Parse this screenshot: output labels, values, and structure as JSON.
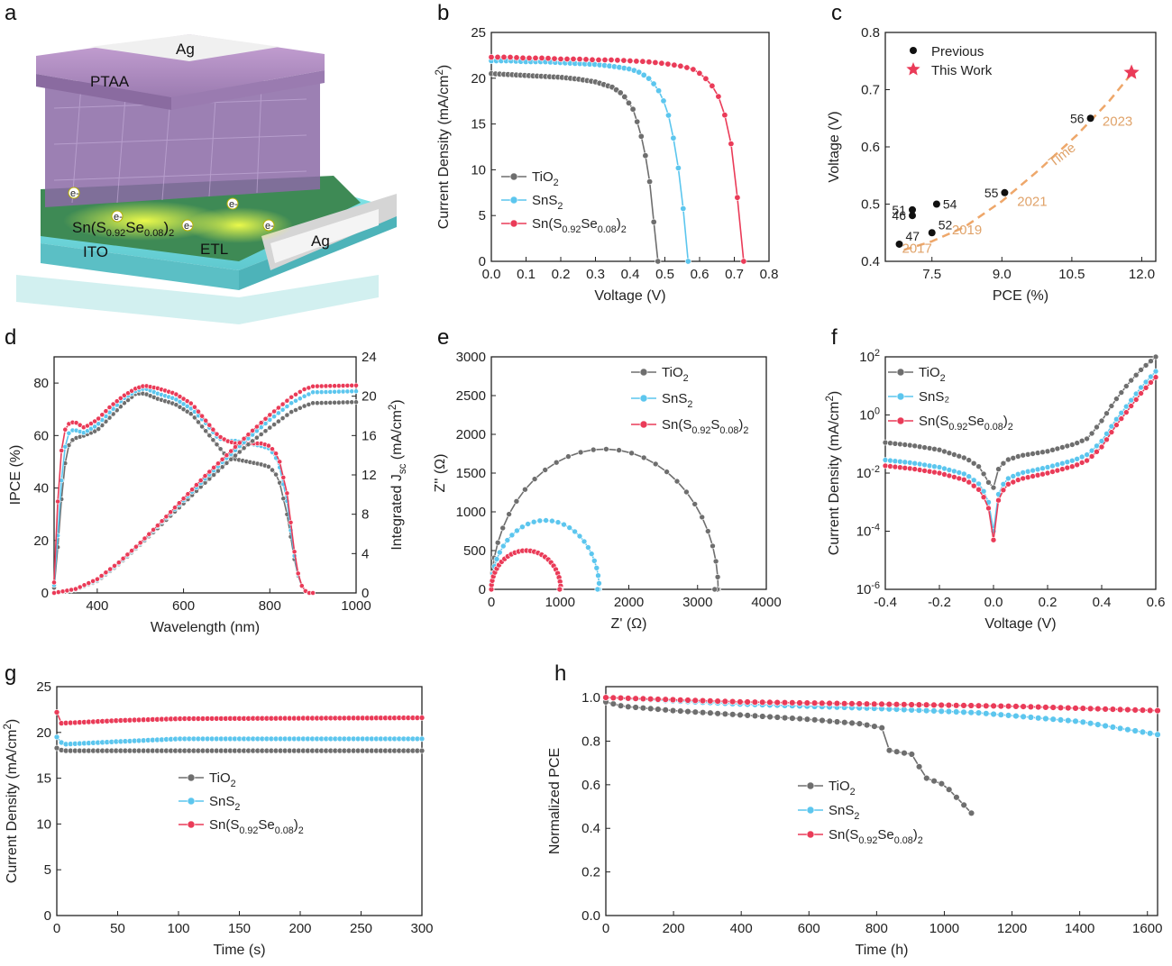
{
  "panel_letters": [
    "a",
    "b",
    "c",
    "d",
    "e",
    "f",
    "g",
    "h"
  ],
  "schematic": {
    "labels": [
      "Ag",
      "PTAA",
      "Sn(S0.92Se0.08)2",
      "ETL",
      "ITO",
      "Ag"
    ],
    "electron": "e-"
  },
  "colors": {
    "tio2": "#6e6e6e",
    "sns2": "#5cc6ee",
    "snsse": "#ea3b58",
    "trend": "#eea76a"
  },
  "chart_data": [
    {
      "panel": "b",
      "type": "line",
      "xlabel": "Voltage (V)",
      "ylabel": "Current Density (mA/cm²)",
      "xlim": [
        0,
        0.8
      ],
      "ylim": [
        0,
        25
      ],
      "xticks": [
        0,
        0.1,
        0.2,
        0.3,
        0.4,
        0.5,
        0.6,
        0.7,
        0.8
      ],
      "yticks": [
        0,
        5,
        10,
        15,
        20,
        25
      ],
      "series": [
        {
          "name": "TiO2",
          "label": [
            "TiO",
            "2",
            ""
          ],
          "color": "tio2",
          "x": [
            0,
            0.05,
            0.1,
            0.15,
            0.2,
            0.25,
            0.3,
            0.35,
            0.38,
            0.41,
            0.43,
            0.45,
            0.46,
            0.47,
            0.475,
            0.48
          ],
          "y": [
            20.5,
            20.4,
            20.3,
            20.2,
            20.1,
            19.9,
            19.6,
            19.0,
            18.2,
            16.5,
            14.0,
            10.5,
            7.5,
            3.5,
            1.5,
            0
          ]
        },
        {
          "name": "SnS2",
          "label": [
            "SnS",
            "2",
            ""
          ],
          "color": "sns2",
          "x": [
            0,
            0.05,
            0.1,
            0.15,
            0.2,
            0.25,
            0.3,
            0.35,
            0.4,
            0.43,
            0.46,
            0.49,
            0.51,
            0.53,
            0.545,
            0.555,
            0.562,
            0.567
          ],
          "y": [
            21.9,
            21.9,
            21.8,
            21.8,
            21.7,
            21.6,
            21.5,
            21.3,
            21.0,
            20.6,
            19.8,
            18.2,
            16.0,
            12.5,
            8.5,
            5.0,
            2.0,
            0
          ]
        },
        {
          "name": "Sn(S0.92Se0.08)2",
          "label": [
            "Sn(S",
            "0.92",
            "Se",
            "0.08",
            ")",
            "2"
          ],
          "color": "snsse",
          "x": [
            0,
            0.05,
            0.1,
            0.15,
            0.2,
            0.25,
            0.3,
            0.35,
            0.4,
            0.45,
            0.5,
            0.55,
            0.58,
            0.61,
            0.64,
            0.66,
            0.68,
            0.69,
            0.7,
            0.71,
            0.72,
            0.727
          ],
          "y": [
            22.3,
            22.3,
            22.2,
            22.2,
            22.1,
            22.1,
            22.0,
            22.0,
            21.9,
            21.8,
            21.6,
            21.3,
            21.0,
            20.3,
            19.0,
            17.6,
            15.0,
            13.0,
            10.5,
            6.5,
            3.0,
            0
          ]
        }
      ]
    },
    {
      "panel": "c",
      "type": "scatter",
      "xlabel": "PCE (%)",
      "ylabel": "Voltage (V)",
      "xlim": [
        6.5,
        12.3
      ],
      "ylim": [
        0.4,
        0.8
      ],
      "xticks": [
        7.5,
        9.0,
        10.5,
        12.0
      ],
      "yticks": [
        0.4,
        0.5,
        0.6,
        0.7,
        0.8
      ],
      "legend": [
        {
          "name": "Previous"
        },
        {
          "name": "This Work"
        }
      ],
      "previous": [
        {
          "x": 6.8,
          "y": 0.43,
          "ref": "47"
        },
        {
          "x": 7.08,
          "y": 0.48,
          "ref": "46"
        },
        {
          "x": 7.08,
          "y": 0.49,
          "ref": "51"
        },
        {
          "x": 7.5,
          "y": 0.45,
          "ref": "52"
        },
        {
          "x": 7.6,
          "y": 0.5,
          "ref": "54"
        },
        {
          "x": 9.06,
          "y": 0.52,
          "ref": "55"
        },
        {
          "x": 10.9,
          "y": 0.65,
          "ref": "56"
        }
      ],
      "this_work": {
        "x": 11.78,
        "y": 0.73
      },
      "years": [
        {
          "text": "2017",
          "x": 7.18,
          "y": 0.415
        },
        {
          "text": "2019",
          "x": 8.25,
          "y": 0.447
        },
        {
          "text": "2021",
          "x": 9.65,
          "y": 0.497
        },
        {
          "text": "2023",
          "x": 11.48,
          "y": 0.637
        }
      ],
      "trend_label": "Time",
      "trend": {
        "x": [
          6.9,
          7.5,
          8.2,
          9.0,
          9.8,
          10.6,
          11.3,
          11.8
        ],
        "y": [
          0.42,
          0.435,
          0.46,
          0.505,
          0.56,
          0.62,
          0.68,
          0.73
        ]
      }
    },
    {
      "panel": "d",
      "type": "line",
      "xlabel": "Wavelength (nm)",
      "ylabel": "IPCE (%)",
      "y2label": [
        "Integrated J",
        "sc",
        " (mA/cm",
        "2",
        ")"
      ],
      "xlim": [
        300,
        1000
      ],
      "ylim": [
        0,
        90
      ],
      "y2lim": [
        0,
        24
      ],
      "xticks": [
        400,
        600,
        800,
        1000
      ],
      "yticks": [
        0,
        20,
        40,
        60,
        80
      ],
      "y2ticks": [
        0,
        4,
        8,
        12,
        16,
        20,
        24
      ],
      "ipce": [
        {
          "color": "tio2",
          "x": [
            300,
            310,
            320,
            330,
            340,
            350,
            370,
            400,
            430,
            460,
            490,
            510,
            540,
            580,
            620,
            650,
            680,
            700,
            720,
            750,
            780,
            800,
            820,
            840,
            850,
            860,
            870,
            880,
            890,
            900
          ],
          "y": [
            2,
            20,
            42,
            55,
            58,
            59,
            60,
            62,
            67,
            72,
            76,
            76,
            74,
            72,
            68,
            62,
            56,
            52,
            51,
            50,
            49,
            48,
            44,
            30,
            20,
            10,
            4,
            1,
            0,
            0
          ]
        },
        {
          "color": "sns2",
          "x": [
            300,
            310,
            320,
            330,
            340,
            350,
            370,
            400,
            430,
            460,
            490,
            510,
            540,
            580,
            620,
            650,
            680,
            700,
            720,
            750,
            780,
            800,
            820,
            840,
            850,
            860,
            870,
            880,
            890,
            900
          ],
          "y": [
            3,
            25,
            50,
            60,
            62,
            62,
            61,
            64,
            69,
            74,
            77,
            78,
            76,
            74,
            70,
            65,
            59,
            58,
            58,
            57,
            56,
            55,
            50,
            35,
            22,
            11,
            4,
            1,
            0,
            0
          ]
        },
        {
          "color": "snsse",
          "x": [
            300,
            310,
            320,
            330,
            340,
            350,
            370,
            400,
            430,
            460,
            490,
            510,
            540,
            580,
            620,
            650,
            680,
            700,
            720,
            750,
            780,
            800,
            820,
            840,
            850,
            860,
            870,
            880,
            890,
            900
          ],
          "y": [
            4,
            40,
            60,
            64,
            65,
            65,
            63,
            66,
            71,
            75,
            78,
            79,
            78,
            76,
            72,
            66,
            60,
            58,
            57,
            57,
            57,
            56,
            52,
            38,
            25,
            12,
            4,
            1,
            0,
            0
          ]
        }
      ],
      "jsc": [
        {
          "color": "tio2",
          "x": [
            300,
            350,
            400,
            450,
            500,
            550,
            600,
            650,
            700,
            750,
            800,
            850,
            880,
            900,
            1000
          ],
          "y": [
            0,
            0.3,
            1.2,
            2.9,
            4.9,
            7.0,
            9.1,
            11.2,
            13.2,
            15.1,
            16.8,
            18.4,
            19.0,
            19.3,
            19.4
          ]
        },
        {
          "color": "sns2",
          "x": [
            300,
            350,
            400,
            450,
            500,
            550,
            600,
            650,
            700,
            750,
            800,
            850,
            880,
            900,
            1000
          ],
          "y": [
            0,
            0.35,
            1.3,
            3.0,
            5.0,
            7.2,
            9.4,
            11.6,
            13.7,
            15.7,
            17.6,
            19.3,
            20.0,
            20.4,
            20.5
          ]
        },
        {
          "color": "snsse",
          "x": [
            300,
            350,
            400,
            450,
            500,
            550,
            600,
            650,
            700,
            750,
            800,
            850,
            880,
            900,
            1000
          ],
          "y": [
            0,
            0.4,
            1.4,
            3.1,
            5.1,
            7.3,
            9.6,
            11.9,
            14.0,
            16.1,
            18.1,
            19.9,
            20.7,
            21.0,
            21.1
          ]
        }
      ]
    },
    {
      "panel": "e",
      "type": "scatter",
      "xlabel": "Z' (Ω)",
      "ylabel": "Z'' (Ω)",
      "xlim": [
        0,
        4000
      ],
      "ylim": [
        0,
        3000
      ],
      "xticks": [
        0,
        1000,
        2000,
        3000,
        4000
      ],
      "yticks": [
        0,
        500,
        1000,
        1500,
        2000,
        2500,
        3000
      ],
      "series": [
        {
          "name": "TiO2",
          "label": [
            "TiO",
            "2",
            ""
          ],
          "color": "tio2",
          "x0": 0,
          "x1": 3300,
          "height": 1810,
          "x_end": 3080
        },
        {
          "name": "SnS2",
          "label": [
            "SnS",
            "2",
            ""
          ],
          "color": "sns2",
          "x0": 0,
          "x1": 1570,
          "height": 890,
          "x_end": 1530
        },
        {
          "name": "Sn(S0.92S0.08)2",
          "label": [
            "Sn(S",
            "0.92",
            "S",
            "0.08",
            ")",
            "2"
          ],
          "color": "snsse",
          "x0": 0,
          "x1": 1010,
          "height": 500,
          "x_end": 990
        }
      ]
    },
    {
      "panel": "f",
      "type": "line",
      "yscale": "log",
      "xlabel": "Voltage (V)",
      "ylabel": "Current Density (mA/cm²)",
      "xlim": [
        -0.4,
        0.6
      ],
      "ylim_log10": [
        -6,
        2
      ],
      "xticks": [
        -0.4,
        -0.2,
        0.0,
        0.2,
        0.4,
        0.6
      ],
      "yticks_exp": [
        -6,
        -4,
        -2,
        0,
        2
      ],
      "series": [
        {
          "name": "TiO2",
          "label": [
            "TiO",
            "2",
            ""
          ],
          "color": "tio2",
          "x": [
            -0.4,
            -0.3,
            -0.2,
            -0.1,
            -0.05,
            -0.02,
            0,
            0.02,
            0.05,
            0.1,
            0.2,
            0.3,
            0.35,
            0.4,
            0.45,
            0.5,
            0.55,
            0.6
          ],
          "log10y": [
            -0.95,
            -1.05,
            -1.2,
            -1.5,
            -1.8,
            -2.3,
            -2.5,
            -1.8,
            -1.55,
            -1.4,
            -1.25,
            -1.0,
            -0.8,
            -0.2,
            0.5,
            1.1,
            1.6,
            2.0
          ]
        },
        {
          "name": "SnS₂",
          "label": [
            "SnS₂"
          ],
          "color": "sns2",
          "x": [
            -0.4,
            -0.3,
            -0.2,
            -0.1,
            -0.05,
            -0.02,
            0,
            0.02,
            0.05,
            0.1,
            0.2,
            0.3,
            0.35,
            0.4,
            0.45,
            0.5,
            0.55,
            0.6
          ],
          "log10y": [
            -1.55,
            -1.65,
            -1.8,
            -2.05,
            -2.4,
            -2.9,
            -4.0,
            -2.6,
            -2.2,
            -2.0,
            -1.8,
            -1.55,
            -1.35,
            -0.9,
            -0.2,
            0.4,
            1.0,
            1.5
          ]
        },
        {
          "name": "Sn(S0.92Se0.08)2",
          "label": [
            "Sn(S",
            "0.92",
            "Se",
            "0.08",
            ")",
            "2"
          ],
          "color": "snsse",
          "x": [
            -0.4,
            -0.3,
            -0.2,
            -0.1,
            -0.05,
            -0.02,
            0,
            0.02,
            0.05,
            0.1,
            0.2,
            0.3,
            0.35,
            0.4,
            0.45,
            0.5,
            0.55,
            0.6
          ],
          "log10y": [
            -1.75,
            -1.85,
            -2.0,
            -2.25,
            -2.6,
            -3.1,
            -4.3,
            -2.8,
            -2.4,
            -2.2,
            -2.0,
            -1.75,
            -1.55,
            -1.1,
            -0.4,
            0.2,
            0.8,
            1.3
          ]
        }
      ]
    },
    {
      "panel": "g",
      "type": "line",
      "xlabel": "Time (s)",
      "ylabel": "Current Density (mA/cm²)",
      "xlim": [
        0,
        300
      ],
      "ylim": [
        0,
        25
      ],
      "xticks": [
        0,
        50,
        100,
        150,
        200,
        250,
        300
      ],
      "yticks": [
        0,
        5,
        10,
        15,
        20,
        25
      ],
      "series": [
        {
          "name": "TiO2",
          "label": [
            "TiO",
            "2",
            ""
          ],
          "color": "tio2",
          "x": [
            0,
            5,
            300
          ],
          "y": [
            18.3,
            18.0,
            18.0
          ]
        },
        {
          "name": "SnS2",
          "label": [
            "SnS",
            "2",
            ""
          ],
          "color": "sns2",
          "x": [
            0,
            5,
            50,
            100,
            300
          ],
          "y": [
            19.5,
            18.7,
            19.0,
            19.3,
            19.3
          ]
        },
        {
          "name": "Sn(S0.92Se0.08)2",
          "label": [
            "Sn(S",
            "0.92",
            "Se",
            "0.08",
            ")",
            "2"
          ],
          "color": "snsse",
          "x": [
            0,
            3,
            50,
            100,
            300
          ],
          "y": [
            22.2,
            21.0,
            21.3,
            21.5,
            21.6
          ]
        }
      ]
    },
    {
      "panel": "h",
      "type": "line",
      "xlabel": "Time (h)",
      "ylabel": "Normalized PCE",
      "xlim": [
        0,
        1630
      ],
      "ylim": [
        0,
        1.05
      ],
      "xticks": [
        0,
        200,
        400,
        600,
        800,
        1000,
        1200,
        1400,
        1600
      ],
      "yticks": [
        0.0,
        0.2,
        0.4,
        0.6,
        0.8,
        1.0
      ],
      "series": [
        {
          "name": "TiO2",
          "label": [
            "TiO",
            "2",
            ""
          ],
          "color": "tio2",
          "x": [
            0,
            50,
            200,
            400,
            600,
            750,
            820,
            830,
            900,
            920,
            930,
            1000,
            1050,
            1080
          ],
          "y": [
            0.98,
            0.96,
            0.94,
            0.92,
            0.9,
            0.88,
            0.86,
            0.76,
            0.74,
            0.74,
            0.64,
            0.6,
            0.52,
            0.47
          ]
        },
        {
          "name": "SnS2",
          "label": [
            "SnS",
            "2",
            ""
          ],
          "color": "sns2",
          "x": [
            0,
            400,
            800,
            1100,
            1400,
            1630
          ],
          "y": [
            1.0,
            0.97,
            0.95,
            0.93,
            0.89,
            0.83
          ]
        },
        {
          "name": "Sn(S0.92Se0.08)2",
          "label": [
            "Sn(S",
            "0.92",
            "Se",
            "0.08",
            ")",
            "2"
          ],
          "color": "snsse",
          "x": [
            0,
            400,
            800,
            1200,
            1630
          ],
          "y": [
            1.0,
            0.98,
            0.97,
            0.96,
            0.94
          ]
        }
      ]
    }
  ]
}
